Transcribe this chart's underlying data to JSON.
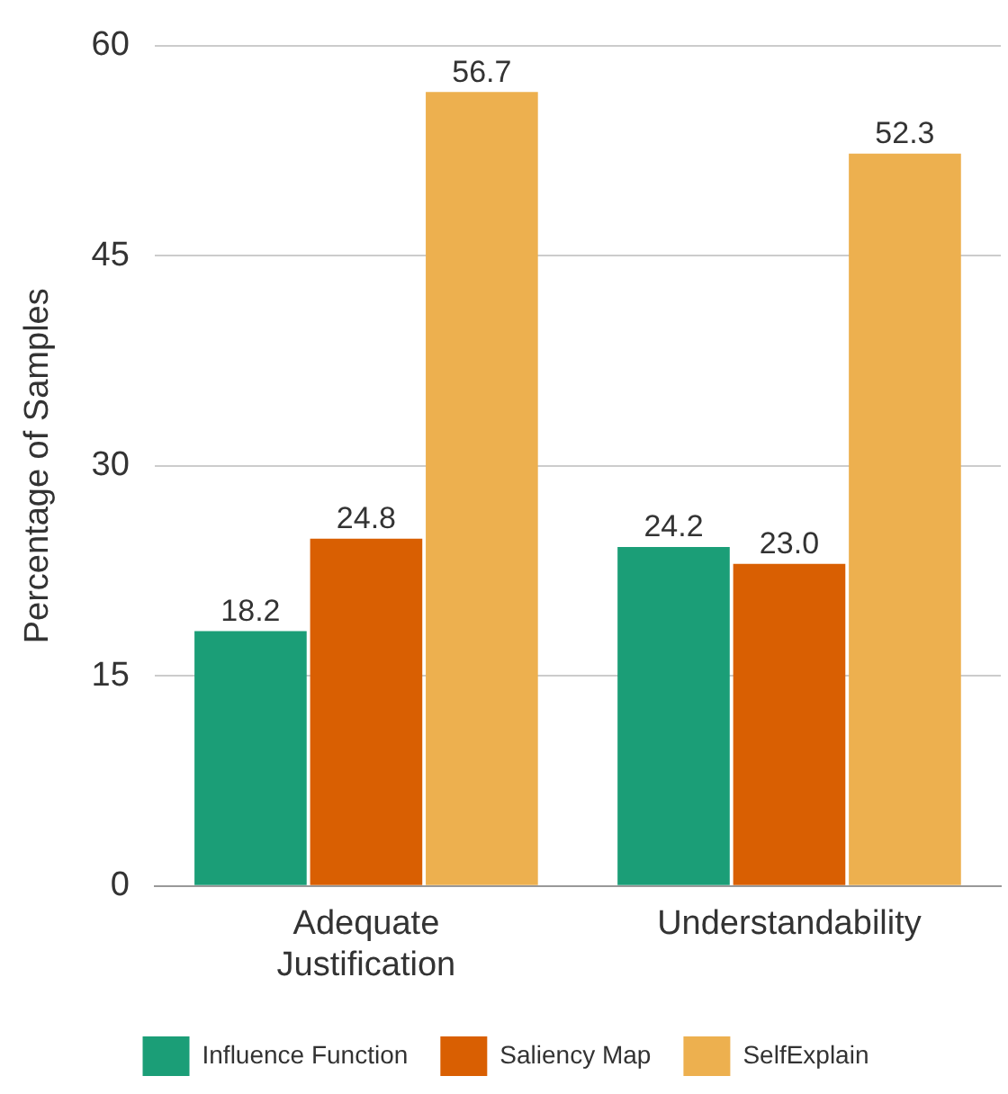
{
  "chart_data": {
    "type": "bar",
    "ylabel": "Percentage of Samples",
    "categories": [
      "Adequate Justification",
      "Understandability"
    ],
    "series": [
      {
        "name": "Influence Function",
        "color": "#1b9e77",
        "values": [
          18.2,
          24.2
        ],
        "value_labels": [
          "18.2",
          "24.2"
        ]
      },
      {
        "name": "Saliency Map",
        "color": "#d95f02",
        "values": [
          24.8,
          23.0
        ],
        "value_labels": [
          "24.8",
          "23.0"
        ]
      },
      {
        "name": "SelfExplain",
        "color": "#edb04f",
        "values": [
          56.7,
          52.3
        ],
        "value_labels": [
          "56.7",
          "52.3"
        ]
      }
    ],
    "ylim": [
      0,
      60
    ],
    "yticks": [
      0,
      15,
      30,
      45,
      60
    ],
    "grid": "y",
    "legend": "bottom"
  }
}
